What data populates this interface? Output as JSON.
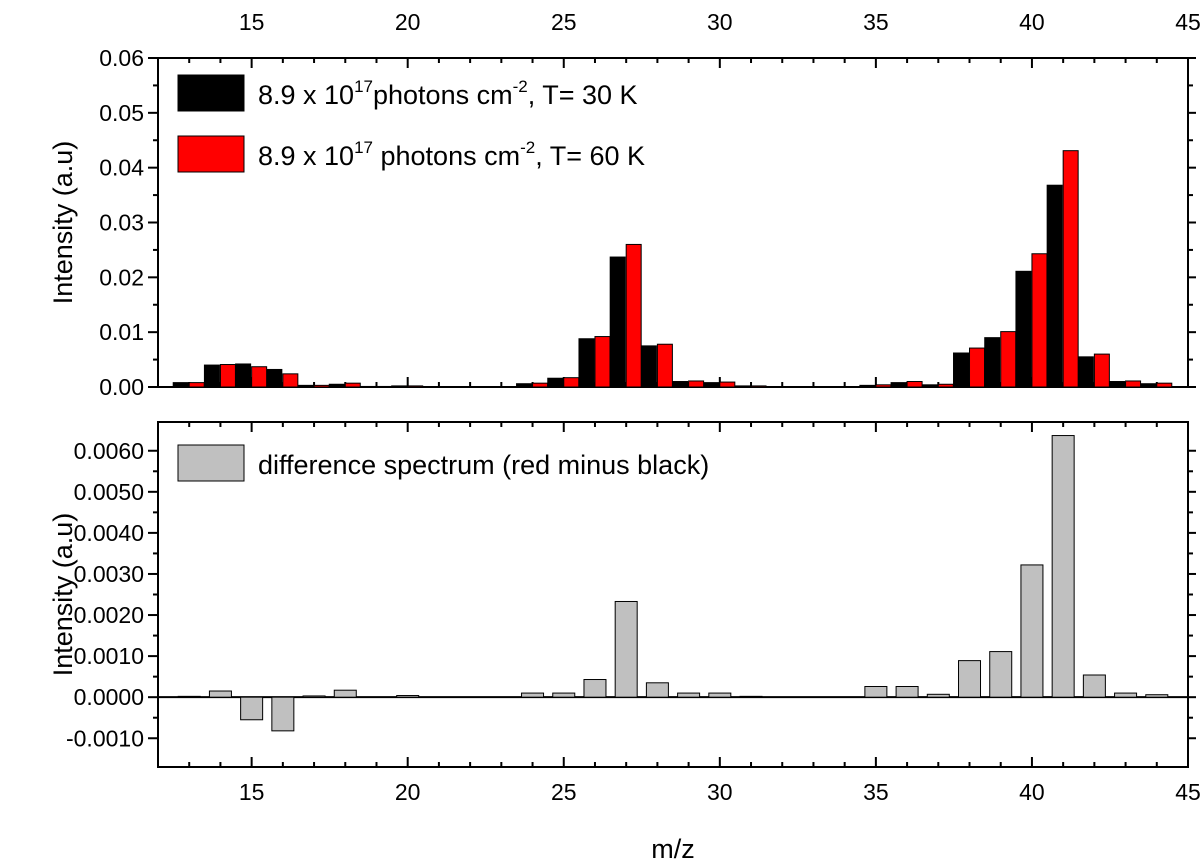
{
  "chart_data": [
    {
      "type": "bar",
      "panel": "top",
      "ylabel": "Intensity (a.u)",
      "xlim": [
        12,
        45
      ],
      "ylim": [
        0,
        0.06
      ],
      "x_ticks": [
        "15",
        "20",
        "25",
        "30",
        "35",
        "40",
        "45"
      ],
      "y_ticks": [
        "0.00",
        "0.01",
        "0.02",
        "0.03",
        "0.04",
        "0.05",
        "0.06"
      ],
      "legend_position": "top-left",
      "x": [
        13,
        14,
        15,
        16,
        17,
        18,
        19,
        20,
        21,
        22,
        23,
        24,
        25,
        26,
        27,
        28,
        29,
        30,
        31,
        32,
        33,
        34,
        35,
        36,
        37,
        38,
        39,
        40,
        41,
        42,
        43,
        44
      ],
      "series": [
        {
          "name": "8.9 x 10^17 photons cm^-2, T= 30 K",
          "legend": {
            "base": "8.9 x 10",
            "sup1": "17",
            "mid": "photons cm",
            "sup2": "-2",
            "end": ", T= 30 K"
          },
          "color": "#000000",
          "values": [
            0.0008,
            0.004,
            0.0042,
            0.0032,
            0.0003,
            0.0005,
            0.0001,
            0.0002,
            0.0,
            0.0,
            0.0,
            0.0006,
            0.0016,
            0.0088,
            0.0237,
            0.0075,
            0.001,
            0.0008,
            0.0002,
            0.0,
            0.0,
            0.0,
            0.0003,
            0.0008,
            0.0004,
            0.0062,
            0.009,
            0.0211,
            0.0368,
            0.0055,
            0.001,
            0.0006
          ]
        },
        {
          "name": "8.9 x 10^17 photons cm^-2, T= 60 K",
          "legend": {
            "base": "8.9 x 10",
            "sup1": "17",
            "mid": " photons cm",
            "sup2": "-2",
            "end": ", T= 60 K"
          },
          "color": "#ff0000",
          "values": [
            0.0008,
            0.0041,
            0.0037,
            0.0024,
            0.0003,
            0.0007,
            0.0001,
            0.0002,
            0.0,
            0.0,
            0.0,
            0.0007,
            0.0017,
            0.0092,
            0.026,
            0.0078,
            0.0011,
            0.0009,
            0.0002,
            0.0,
            0.0,
            0.0,
            0.0004,
            0.001,
            0.0005,
            0.0071,
            0.0101,
            0.0243,
            0.0431,
            0.006,
            0.0011,
            0.0007
          ]
        }
      ]
    },
    {
      "type": "bar",
      "panel": "bottom",
      "xlabel": "m/z",
      "ylabel": "Intensity (a.u)",
      "xlim": [
        12,
        45
      ],
      "ylim": [
        -0.0017,
        0.0067
      ],
      "x_ticks": [
        "15",
        "20",
        "25",
        "30",
        "35",
        "40",
        "45"
      ],
      "y_ticks": [
        "-0.0010",
        "0.0000",
        "0.0010",
        "0.0020",
        "0.0030",
        "0.0040",
        "0.0050",
        "0.0060"
      ],
      "legend_position": "top-left",
      "series": [
        {
          "name": "difference spectrum (red minus black)",
          "color": "#c0c0c0",
          "x": [
            13,
            14,
            15,
            16,
            17,
            18,
            20,
            24,
            25,
            26,
            27,
            28,
            29,
            30,
            31,
            35,
            36,
            37,
            38,
            39,
            40,
            41,
            42,
            43,
            44
          ],
          "values": [
            2e-05,
            0.00015,
            -0.00055,
            -0.00082,
            3e-05,
            0.00017,
            4e-05,
            0.0001,
            0.0001,
            0.00043,
            0.00233,
            0.00035,
            0.0001,
            0.0001,
            2e-05,
            0.00026,
            0.00026,
            7e-05,
            0.00089,
            0.00111,
            0.00322,
            0.00637,
            0.00054,
            0.0001,
            6e-05
          ]
        }
      ]
    }
  ]
}
